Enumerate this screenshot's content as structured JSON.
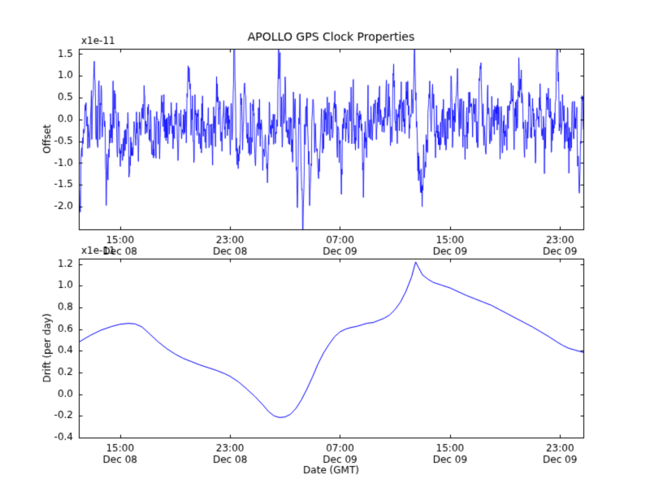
{
  "figure": {
    "title": "APOLLO GPS Clock Properties",
    "xlabel": "Date (GMT)",
    "background_color": "#ffffff",
    "axis_color": "#000000",
    "line_color": "#0000ff",
    "scale_note": "x1e-11"
  },
  "chart_data": [
    {
      "type": "line",
      "title": "APOLLO GPS Clock Properties",
      "ylabel": "Offset",
      "offset_text": "x1e-11",
      "unit_scale": "1e-11",
      "grid": false,
      "legend": null,
      "line_color": "#0000ff",
      "ylim": [
        -2.52,
        1.62
      ],
      "yticks": [
        1.5,
        1.0,
        0.5,
        0.0,
        -0.5,
        -1.0,
        -1.5,
        -2.0
      ],
      "xlim_hours": [
        0,
        36.7
      ],
      "xticks": [
        {
          "t": 3,
          "time": "15:00",
          "date": "Dec 08"
        },
        {
          "t": 11,
          "time": "23:00",
          "date": "Dec 08"
        },
        {
          "t": 19,
          "time": "07:00",
          "date": "Dec 09"
        },
        {
          "t": 27,
          "time": "15:00",
          "date": "Dec 09"
        },
        {
          "t": 35,
          "time": "23:00",
          "date": "Dec 09"
        }
      ],
      "series_kind": "stochastic_noise",
      "noise": {
        "seed": 1337,
        "n": 1400,
        "ar": 0.55,
        "sigma": 0.33,
        "mean": -0.02
      },
      "events": [
        [
          0.05,
          -1.3,
          0.3
        ],
        [
          1.1,
          1.25,
          0.15
        ],
        [
          2.0,
          -1.6,
          0.15
        ],
        [
          3.7,
          -1.65,
          0.15
        ],
        [
          8.0,
          1.3,
          0.15
        ],
        [
          11.3,
          1.7,
          0.15
        ],
        [
          11.6,
          -1.5,
          0.15
        ],
        [
          13.7,
          -1.3,
          0.15
        ],
        [
          14.6,
          1.4,
          0.15
        ],
        [
          15.9,
          -1.75,
          0.18
        ],
        [
          16.3,
          -2.1,
          0.18
        ],
        [
          16.8,
          -1.9,
          0.18
        ],
        [
          17.4,
          -1.55,
          0.18
        ],
        [
          19.1,
          -1.4,
          0.15
        ],
        [
          20.7,
          -1.55,
          0.15
        ],
        [
          23.9,
          1.5,
          0.15
        ],
        [
          24.4,
          1.75,
          0.25
        ],
        [
          24.95,
          -1.85,
          0.5
        ],
        [
          27.5,
          1.15,
          0.15
        ],
        [
          29.2,
          1.25,
          0.15
        ],
        [
          32.0,
          0.9,
          0.15
        ],
        [
          34.8,
          1.7,
          0.15
        ],
        [
          36.4,
          -1.25,
          0.2
        ]
      ]
    },
    {
      "type": "line",
      "ylabel": "Drift (per day)",
      "xlabel": "Date (GMT)",
      "offset_text": "x1e-11",
      "unit_scale": "1e-11",
      "grid": false,
      "legend": null,
      "line_color": "#0000ff",
      "ylim": [
        -0.4,
        1.25
      ],
      "yticks": [
        1.2,
        1.0,
        0.8,
        0.6,
        0.4,
        0.2,
        0.0,
        -0.2,
        -0.4
      ],
      "xlim_hours": [
        0,
        36.7
      ],
      "xticks": [
        {
          "t": 3,
          "time": "15:00",
          "date": "Dec 08"
        },
        {
          "t": 11,
          "time": "23:00",
          "date": "Dec 08"
        },
        {
          "t": 19,
          "time": "07:00",
          "date": "Dec 09"
        },
        {
          "t": 27,
          "time": "15:00",
          "date": "Dec 09"
        },
        {
          "t": 35,
          "time": "23:00",
          "date": "Dec 09"
        }
      ],
      "series_kind": "points",
      "series": [
        [
          0,
          0.48
        ],
        [
          0.8,
          0.54
        ],
        [
          1.6,
          0.59
        ],
        [
          2.4,
          0.625
        ],
        [
          3.0,
          0.645
        ],
        [
          3.6,
          0.653
        ],
        [
          4.1,
          0.648
        ],
        [
          4.6,
          0.62
        ],
        [
          5.2,
          0.55
        ],
        [
          5.8,
          0.48
        ],
        [
          6.4,
          0.42
        ],
        [
          7.0,
          0.37
        ],
        [
          7.6,
          0.33
        ],
        [
          8.2,
          0.3
        ],
        [
          8.8,
          0.27
        ],
        [
          9.4,
          0.245
        ],
        [
          10.0,
          0.22
        ],
        [
          10.6,
          0.19
        ],
        [
          11.0,
          0.165
        ],
        [
          11.6,
          0.115
        ],
        [
          12.2,
          0.05
        ],
        [
          12.8,
          -0.02
        ],
        [
          13.4,
          -0.1
        ],
        [
          13.8,
          -0.16
        ],
        [
          14.2,
          -0.2
        ],
        [
          14.6,
          -0.215
        ],
        [
          15.0,
          -0.21
        ],
        [
          15.4,
          -0.185
        ],
        [
          15.8,
          -0.13
        ],
        [
          16.2,
          -0.05
        ],
        [
          16.6,
          0.05
        ],
        [
          17.0,
          0.16
        ],
        [
          17.4,
          0.28
        ],
        [
          17.8,
          0.38
        ],
        [
          18.2,
          0.46
        ],
        [
          18.6,
          0.53
        ],
        [
          19.0,
          0.575
        ],
        [
          19.4,
          0.6
        ],
        [
          19.8,
          0.615
        ],
        [
          20.2,
          0.625
        ],
        [
          20.6,
          0.64
        ],
        [
          21.0,
          0.655
        ],
        [
          21.4,
          0.66
        ],
        [
          21.8,
          0.68
        ],
        [
          22.2,
          0.7
        ],
        [
          22.6,
          0.73
        ],
        [
          23.0,
          0.78
        ],
        [
          23.4,
          0.85
        ],
        [
          23.8,
          0.95
        ],
        [
          24.2,
          1.08
        ],
        [
          24.5,
          1.22
        ],
        [
          24.7,
          1.17
        ],
        [
          25.0,
          1.1
        ],
        [
          25.4,
          1.06
        ],
        [
          25.8,
          1.03
        ],
        [
          26.4,
          1.005
        ],
        [
          27.0,
          0.98
        ],
        [
          27.6,
          0.945
        ],
        [
          28.2,
          0.91
        ],
        [
          28.8,
          0.88
        ],
        [
          29.4,
          0.85
        ],
        [
          30.0,
          0.82
        ],
        [
          30.6,
          0.78
        ],
        [
          31.2,
          0.74
        ],
        [
          31.8,
          0.7
        ],
        [
          32.4,
          0.66
        ],
        [
          33.0,
          0.62
        ],
        [
          33.6,
          0.575
        ],
        [
          34.2,
          0.53
        ],
        [
          34.8,
          0.48
        ],
        [
          35.2,
          0.45
        ],
        [
          35.6,
          0.425
        ],
        [
          36.0,
          0.41
        ],
        [
          36.7,
          0.385
        ]
      ]
    }
  ]
}
